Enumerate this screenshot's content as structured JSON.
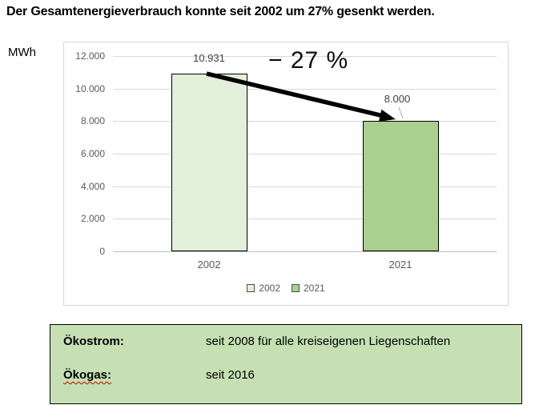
{
  "title": "Der Gesamtenergieverbrauch konnte seit 2002 um 27% gesenkt werden.",
  "chart_data": {
    "type": "bar",
    "categories": [
      "2002",
      "2021"
    ],
    "values": [
      10931,
      8000
    ],
    "data_labels": [
      "10.931",
      "8.000"
    ],
    "series_colors": [
      "#e2efda",
      "#a9d08e"
    ],
    "ylabel": "MWh",
    "ylim": [
      0,
      12000
    ],
    "ytick_labels": [
      "12.000",
      "10.000",
      "8.000",
      "6.000",
      "4.000",
      "2.000",
      "0"
    ],
    "grid": true,
    "legend_position": "bottom",
    "legend": [
      {
        "label": "2002",
        "color": "#e2efda"
      },
      {
        "label": "2021",
        "color": "#a9d08e"
      }
    ],
    "annotation": "− 27 %"
  },
  "info_box": {
    "background": "#c6e0b4",
    "rows": [
      {
        "term": "Ökostrom:",
        "desc": "seit 2008 für alle kreiseigenen Liegenschaften"
      },
      {
        "term": "Ökogas:",
        "desc": "seit 2016"
      }
    ]
  },
  "colors": {
    "bar_border": "#000000",
    "gridline": "#d9d9d9",
    "axis_line": "#bfbfbf",
    "tick_text": "#595959",
    "arrow": "#000000"
  }
}
